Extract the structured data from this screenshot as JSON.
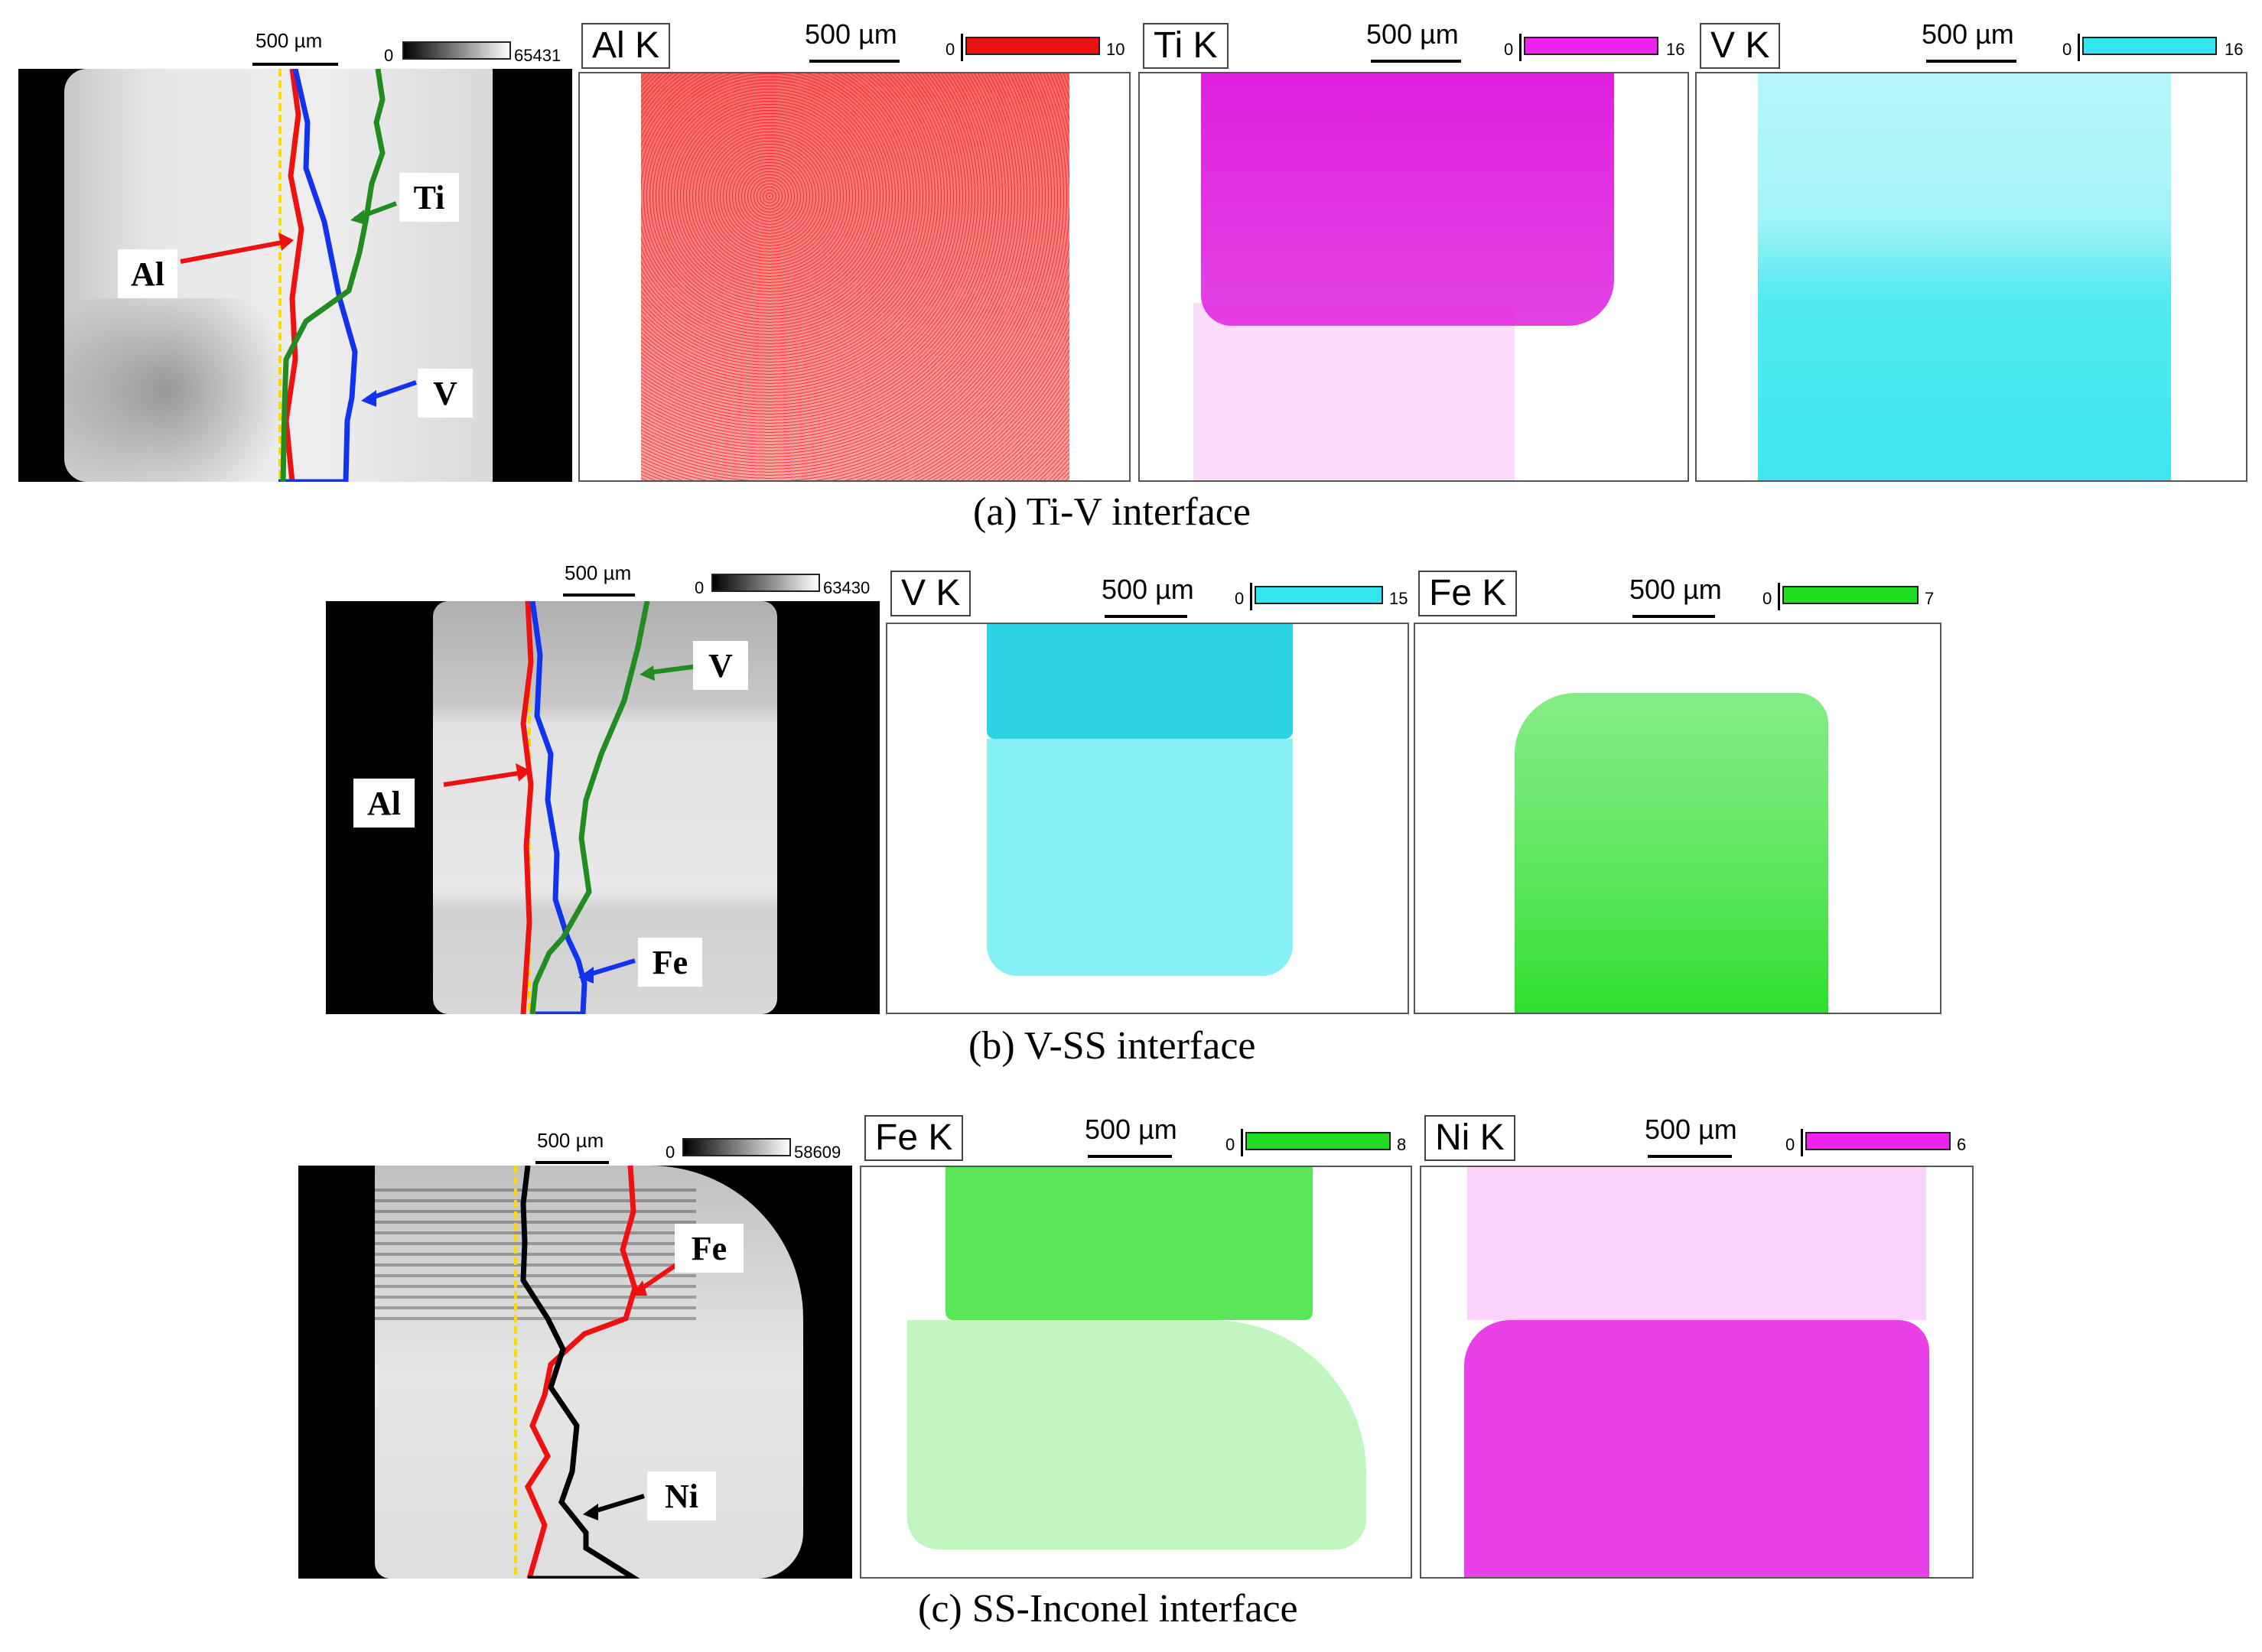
{
  "figure": {
    "rows": [
      {
        "id": "a",
        "caption": "(a) Ti-V interface",
        "sem": {
          "scale": "500 µm",
          "cmin": "0",
          "cmax": "65431",
          "labels": [
            "Ti",
            "Al",
            "V"
          ]
        },
        "maps": [
          {
            "element": "Al K",
            "scale": "500 µm",
            "cmin": "0",
            "cmax": "10",
            "color": "#ee1111"
          },
          {
            "element": "Ti K",
            "scale": "500 µm",
            "cmin": "0",
            "cmax": "16",
            "color": "#ee22ee"
          },
          {
            "element": "V K",
            "scale": "500 µm",
            "cmin": "0",
            "cmax": "16",
            "color": "#33e6ee"
          }
        ]
      },
      {
        "id": "b",
        "caption": "(b) V-SS interface",
        "sem": {
          "scale": "500 µm",
          "cmin": "0",
          "cmax": "63430",
          "labels": [
            "V",
            "Al",
            "Fe"
          ]
        },
        "maps": [
          {
            "element": "V K",
            "scale": "500 µm",
            "cmin": "0",
            "cmax": "15",
            "color": "#33e6ee"
          },
          {
            "element": "Fe K",
            "scale": "500 µm",
            "cmin": "0",
            "cmax": "7",
            "color": "#22dd22"
          }
        ]
      },
      {
        "id": "c",
        "caption": "(c) SS-Inconel interface",
        "sem": {
          "scale": "500 µm",
          "cmin": "0",
          "cmax": "58609",
          "labels": [
            "Fe",
            "Ni"
          ]
        },
        "maps": [
          {
            "element": "Fe K",
            "scale": "500 µm",
            "cmin": "0",
            "cmax": "8",
            "color": "#22dd22"
          },
          {
            "element": "Ni K",
            "scale": "500 µm",
            "cmin": "0",
            "cmax": "6",
            "color": "#ee22ee"
          }
        ]
      }
    ]
  }
}
